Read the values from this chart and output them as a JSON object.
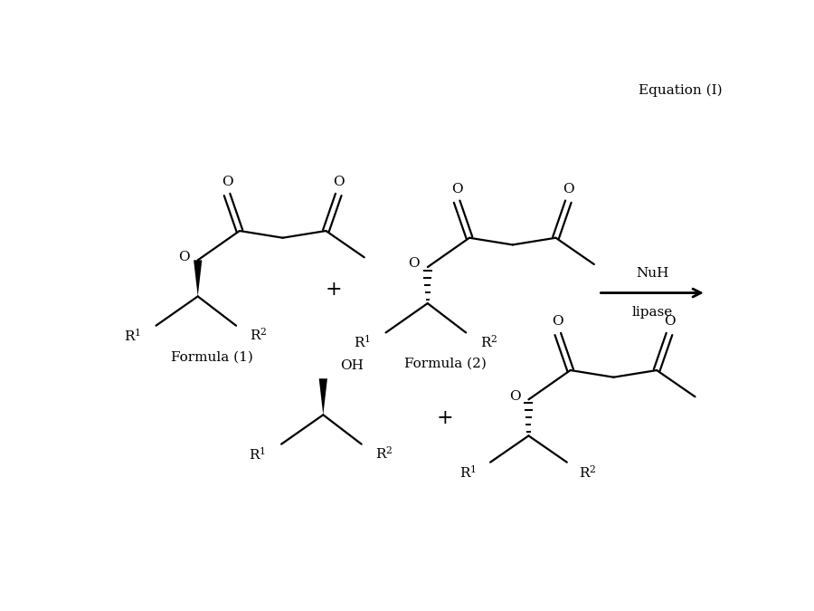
{
  "title": "Equation (I)",
  "background_color": "#ffffff",
  "text_color": "#000000",
  "formula1_label": "Formula (1)",
  "formula2_label": "Formula (2)",
  "nuh_label": "NuH",
  "lipase_label": "lipase",
  "figsize": [
    9.0,
    6.75
  ],
  "dpi": 100
}
